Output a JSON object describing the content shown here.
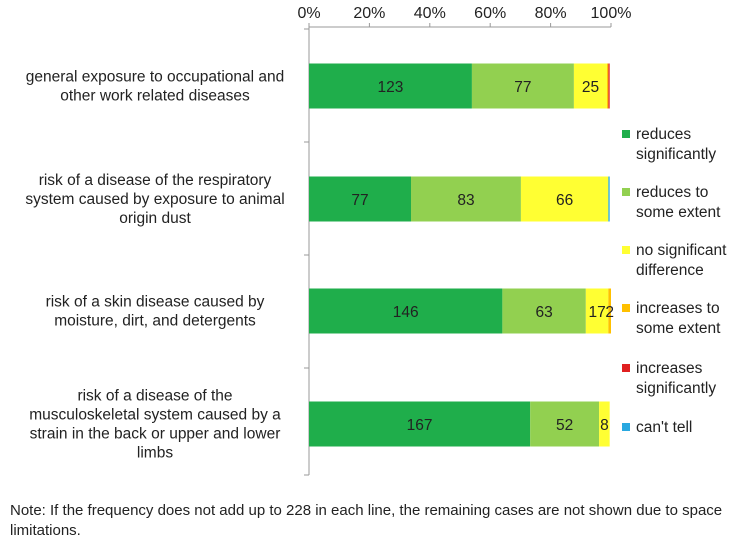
{
  "chart_data": {
    "type": "bar",
    "orientation": "horizontal",
    "stacked": "percent",
    "total": 228,
    "categories": [
      "general exposure to occupational and other work related diseases",
      "risk of a disease of the respiratory system caused by exposure to animal origin dust",
      "risk of a skin disease caused by moisture, dirt, and detergents",
      "risk of a disease of the musculoskeletal system caused by a strain in the back or upper and lower limbs"
    ],
    "category_lines": [
      [
        "general exposure to occupational and",
        "other work related diseases"
      ],
      [
        "risk of a disease of the respiratory",
        "system caused by exposure to animal",
        "origin dust"
      ],
      [
        "risk of a skin disease caused by",
        "moisture, dirt, and detergents"
      ],
      [
        "risk of a disease of the",
        "musculoskeletal system caused by a",
        "strain in the back or upper and lower",
        "limbs"
      ]
    ],
    "series": [
      {
        "name": "reduces significantly",
        "legend_lines": [
          "reduces",
          "significantly"
        ],
        "color": "#1fae4b",
        "values": [
          123,
          77,
          146,
          167
        ],
        "labels": [
          "123",
          "77",
          "146",
          "167"
        ]
      },
      {
        "name": "reduces to some extent",
        "legend_lines": [
          "reduces to",
          "some extent"
        ],
        "color": "#92d050",
        "values": [
          77,
          83,
          63,
          52
        ],
        "labels": [
          "77",
          "83",
          "63",
          "52"
        ]
      },
      {
        "name": "no significant difference",
        "legend_lines": [
          "no significant",
          "difference"
        ],
        "color": "#ffff33",
        "values": [
          25,
          66,
          17,
          8
        ],
        "labels": [
          "25",
          "66",
          "17",
          "8"
        ]
      },
      {
        "name": "increases to some extent",
        "legend_lines": [
          "increases to",
          "some extent"
        ],
        "color": "#ffc000",
        "values": [
          1,
          0,
          2,
          0
        ],
        "labels": [
          "",
          "",
          "2",
          ""
        ]
      },
      {
        "name": "increases significantly",
        "legend_lines": [
          "increases",
          "significantly"
        ],
        "color": "#e02020",
        "values": [
          1,
          0,
          0,
          0
        ],
        "labels": [
          "",
          "",
          "",
          ""
        ]
      },
      {
        "name": "can't tell",
        "legend_lines": [
          "can't tell"
        ],
        "color": "#29a8e0",
        "values": [
          0,
          1,
          0,
          0
        ],
        "labels": [
          "",
          "",
          "",
          ""
        ]
      }
    ],
    "xaxis": {
      "ticks": [
        "0%",
        "20%",
        "40%",
        "60%",
        "80%",
        "100%"
      ],
      "position": "top"
    },
    "grid": false,
    "legend": "right"
  },
  "note": "Note: If the frequency does not add up to 228 in each line, the remaining cases are not shown due to space limitations."
}
